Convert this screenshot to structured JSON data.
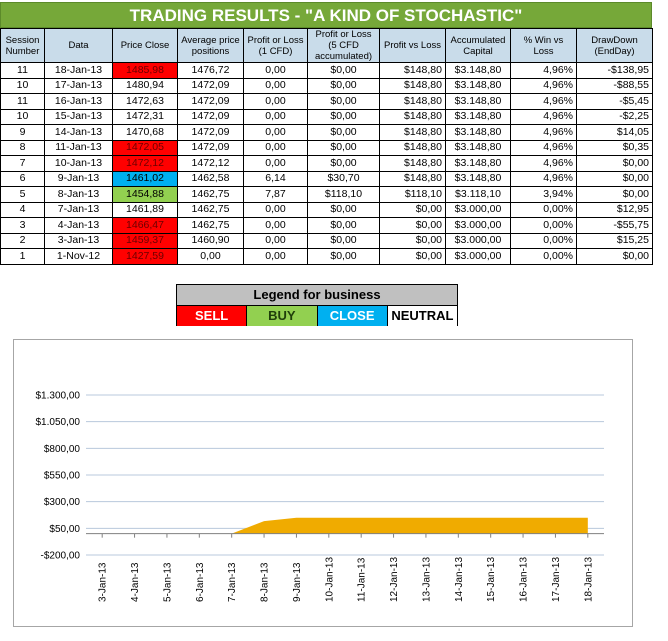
{
  "title": "TRADING RESULTS - \"A KIND OF STOCHASTIC\"",
  "colors": {
    "sell": "#ff0000",
    "buy": "#92d050",
    "close": "#00b0f0",
    "neutral": "#ffffff",
    "area": "#f0ab00"
  },
  "table": {
    "headers": [
      "Session Number",
      "Data",
      "Price Close",
      "Average price positions",
      "Profit or Loss (1 CFD)",
      "Profit or Loss (5 CFD accumulated)",
      "Profit vs Loss",
      "Accumulated Capital",
      "% Win vs Loss",
      "DrawDown (EndDay)"
    ],
    "rows": [
      {
        "session": "11",
        "date": "18-Jan-13",
        "price_close": "1485,98",
        "status": "sell",
        "avg_price": "1476,72",
        "pl_1cfd": "0,00",
        "pl_5cfd": "$0,00",
        "profit_vs_loss": "$148,80",
        "capital": "$3.148,80",
        "win_pct": "4,96%",
        "drawdown": "-$138,95"
      },
      {
        "session": "10",
        "date": "17-Jan-13",
        "price_close": "1480,94",
        "status": "neutral",
        "avg_price": "1472,09",
        "pl_1cfd": "0,00",
        "pl_5cfd": "$0,00",
        "profit_vs_loss": "$148,80",
        "capital": "$3.148,80",
        "win_pct": "4,96%",
        "drawdown": "-$88,55"
      },
      {
        "session": "11",
        "date": "16-Jan-13",
        "price_close": "1472,63",
        "status": "neutral",
        "avg_price": "1472,09",
        "pl_1cfd": "0,00",
        "pl_5cfd": "$0,00",
        "profit_vs_loss": "$148,80",
        "capital": "$3.148,80",
        "win_pct": "4,96%",
        "drawdown": "-$5,45"
      },
      {
        "session": "10",
        "date": "15-Jan-13",
        "price_close": "1472,31",
        "status": "neutral",
        "avg_price": "1472,09",
        "pl_1cfd": "0,00",
        "pl_5cfd": "$0,00",
        "profit_vs_loss": "$148,80",
        "capital": "$3.148,80",
        "win_pct": "4,96%",
        "drawdown": "-$2,25"
      },
      {
        "session": "9",
        "date": "14-Jan-13",
        "price_close": "1470,68",
        "status": "neutral",
        "avg_price": "1472,09",
        "pl_1cfd": "0,00",
        "pl_5cfd": "$0,00",
        "profit_vs_loss": "$148,80",
        "capital": "$3.148,80",
        "win_pct": "4,96%",
        "drawdown": "$14,05"
      },
      {
        "session": "8",
        "date": "11-Jan-13",
        "price_close": "1472,05",
        "status": "sell",
        "avg_price": "1472,09",
        "pl_1cfd": "0,00",
        "pl_5cfd": "$0,00",
        "profit_vs_loss": "$148,80",
        "capital": "$3.148,80",
        "win_pct": "4,96%",
        "drawdown": "$0,35"
      },
      {
        "session": "7",
        "date": "10-Jan-13",
        "price_close": "1472,12",
        "status": "sell",
        "avg_price": "1472,12",
        "pl_1cfd": "0,00",
        "pl_5cfd": "$0,00",
        "profit_vs_loss": "$148,80",
        "capital": "$3.148,80",
        "win_pct": "4,96%",
        "drawdown": "$0,00"
      },
      {
        "session": "6",
        "date": "9-Jan-13",
        "price_close": "1461,02",
        "status": "close",
        "avg_price": "1462,58",
        "pl_1cfd": "6,14",
        "pl_5cfd": "$30,70",
        "profit_vs_loss": "$148,80",
        "capital": "$3.148,80",
        "win_pct": "4,96%",
        "drawdown": "$0,00"
      },
      {
        "session": "5",
        "date": "8-Jan-13",
        "price_close": "1454,88",
        "status": "buy",
        "avg_price": "1462,75",
        "pl_1cfd": "7,87",
        "pl_5cfd": "$118,10",
        "profit_vs_loss": "$118,10",
        "capital": "$3.118,10",
        "win_pct": "3,94%",
        "drawdown": "$0,00"
      },
      {
        "session": "4",
        "date": "7-Jan-13",
        "price_close": "1461,89",
        "status": "neutral",
        "avg_price": "1462,75",
        "pl_1cfd": "0,00",
        "pl_5cfd": "$0,00",
        "profit_vs_loss": "$0,00",
        "capital": "$3.000,00",
        "win_pct": "0,00%",
        "drawdown": "$12,95"
      },
      {
        "session": "3",
        "date": "4-Jan-13",
        "price_close": "1466,47",
        "status": "sell",
        "avg_price": "1462,75",
        "pl_1cfd": "0,00",
        "pl_5cfd": "$0,00",
        "profit_vs_loss": "$0,00",
        "capital": "$3.000,00",
        "win_pct": "0,00%",
        "drawdown": "-$55,75"
      },
      {
        "session": "2",
        "date": "3-Jan-13",
        "price_close": "1459,37",
        "status": "sell",
        "avg_price": "1460,90",
        "pl_1cfd": "0,00",
        "pl_5cfd": "$0,00",
        "profit_vs_loss": "$0,00",
        "capital": "$3.000,00",
        "win_pct": "0,00%",
        "drawdown": "$15,25"
      },
      {
        "session": "1",
        "date": "1-Nov-12",
        "price_close": "1427,59",
        "status": "sell",
        "avg_price": "0,00",
        "pl_1cfd": "0,00",
        "pl_5cfd": "$0,00",
        "profit_vs_loss": "$0,00",
        "capital": "$3.000,00",
        "win_pct": "0,00%",
        "drawdown": "$0,00"
      }
    ]
  },
  "legend": {
    "title": "Legend for business",
    "items": [
      {
        "key": "sell",
        "label": "SELL"
      },
      {
        "key": "buy",
        "label": "BUY"
      },
      {
        "key": "close",
        "label": "CLOSE"
      },
      {
        "key": "neutral",
        "label": "NEUTRAL"
      }
    ]
  },
  "chart_data": {
    "type": "area",
    "title": "",
    "xlabel": "",
    "ylabel": "",
    "x": [
      "3-Jan-13",
      "4-Jan-13",
      "5-Jan-13",
      "6-Jan-13",
      "7-Jan-13",
      "8-Jan-13",
      "9-Jan-13",
      "10-Jan-13",
      "11-Jan-13",
      "12-Jan-13",
      "13-Jan-13",
      "14-Jan-13",
      "15-Jan-13",
      "16-Jan-13",
      "17-Jan-13",
      "18-Jan-13"
    ],
    "values": [
      0,
      0,
      0,
      0,
      0,
      118.1,
      148.8,
      148.8,
      148.8,
      148.8,
      148.8,
      148.8,
      148.8,
      148.8,
      148.8,
      148.8
    ],
    "ylim": [
      -200,
      1300
    ],
    "yticks": [
      -200,
      50,
      300,
      550,
      800,
      1050,
      1300
    ],
    "ytick_labels": [
      "-$200,00",
      "$50,00",
      "$300,00",
      "$550,00",
      "$800,00",
      "$1.050,00",
      "$1.300,00"
    ],
    "grid": true,
    "legend": "none"
  }
}
